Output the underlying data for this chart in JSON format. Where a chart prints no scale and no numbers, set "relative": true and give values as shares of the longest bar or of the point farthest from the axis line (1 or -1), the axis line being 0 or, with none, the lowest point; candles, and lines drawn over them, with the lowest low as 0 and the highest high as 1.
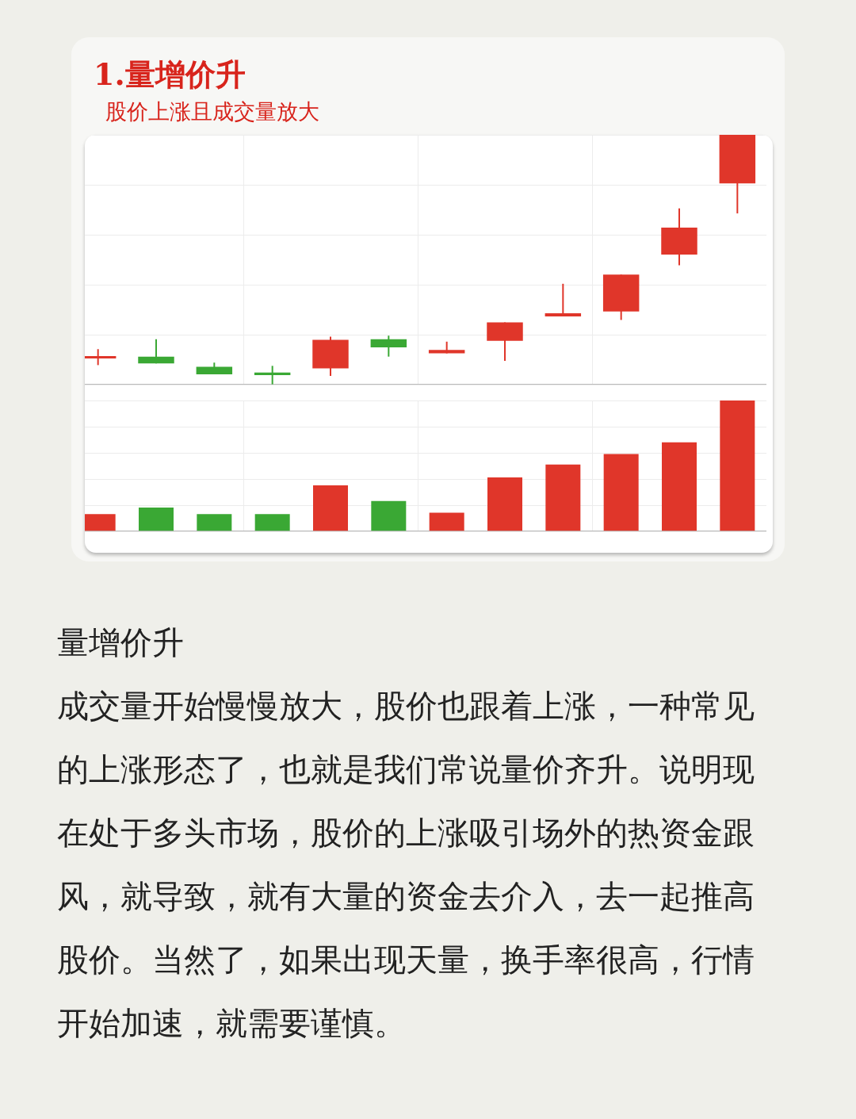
{
  "chart_data": [
    {
      "type": "candlestick",
      "title": "1.量增价升",
      "subtitle": "股价上涨且成交量放大",
      "relative": true,
      "grid": true,
      "legend": false,
      "categories": [
        null,
        null,
        null,
        null,
        null,
        null,
        null,
        null,
        null,
        null,
        null,
        null
      ],
      "ohlc": [
        [
          0.104,
          0.141,
          0.077,
          0.111
        ],
        [
          0.111,
          0.181,
          0.084,
          0.084
        ],
        [
          0.07,
          0.087,
          0.04,
          0.04
        ],
        [
          0.047,
          0.074,
          0,
          0.037
        ],
        [
          0.064,
          0.191,
          0.034,
          0.178
        ],
        [
          0.181,
          0.195,
          0.111,
          0.148
        ],
        [
          0.124,
          0.171,
          0.124,
          0.138
        ],
        [
          0.174,
          0.248,
          0.094,
          0.248
        ],
        [
          0.272,
          0.403,
          0.272,
          0.285
        ],
        [
          0.292,
          0.44,
          0.258,
          0.44
        ],
        [
          0.52,
          0.705,
          0.477,
          0.628
        ],
        [
          0.805,
          1,
          0.685,
          1
        ]
      ],
      "colors": [
        "#e0362a",
        "#3aa834",
        "#3aa834",
        "#3aa834",
        "#e0362a",
        "#3aa834",
        "#e0362a",
        "#e0362a",
        "#e0362a",
        "#e0362a",
        "#e0362a",
        "#e0362a"
      ]
    },
    {
      "type": "bar",
      "relative": true,
      "grid": true,
      "legend": false,
      "categories": [
        null,
        null,
        null,
        null,
        null,
        null,
        null,
        null,
        null,
        null,
        null,
        null
      ],
      "values": [
        0.13,
        0.18,
        0.13,
        0.13,
        0.35,
        0.23,
        0.14,
        0.41,
        0.51,
        0.59,
        0.68,
        1
      ],
      "colors": [
        "#e0362a",
        "#3aa834",
        "#3aa834",
        "#3aa834",
        "#e0362a",
        "#3aa834",
        "#e0362a",
        "#e0362a",
        "#e0362a",
        "#e0362a",
        "#e0362a",
        "#e0362a"
      ],
      "annotations": [
        "量增价升",
        "成交量开始慢慢放大，股价也跟着上涨，一种常见的上涨形态了，也就是我们常说量价齐升。说明现在处于多头市场，股价的上涨吸引场外的热资金跟风，就导致，就有大量的资金去介入，去一起推高股价。当然了，如果出现天量，换手率很高，行情开始加速，就需要谨慎。"
      ]
    }
  ]
}
